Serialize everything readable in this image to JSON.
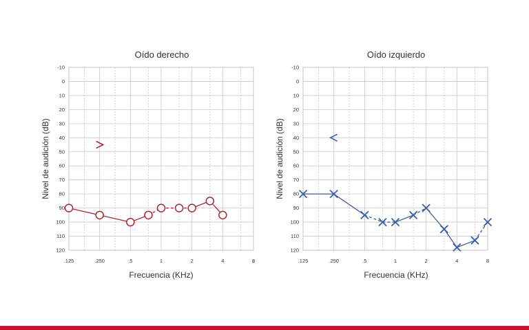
{
  "colors": {
    "right_ear": "#b22234",
    "left_ear": "#3b5ca8",
    "grid": "#c8c8c8",
    "accent_bar": "#c8102e"
  },
  "x_tick_labels": [
    ".125",
    ".250",
    ".5",
    "1",
    "2",
    "4",
    "8"
  ],
  "y_tick_labels": [
    "-10",
    "0",
    "10",
    "20",
    "30",
    "40",
    "50",
    "60",
    "70",
    "80",
    "90",
    "100",
    "110",
    "120"
  ],
  "chart_data": [
    {
      "type": "line",
      "title": "Oído derecho",
      "xlabel": "Frecuencia (KHz)",
      "ylabel": "Nivel de audición (dB)",
      "x_scale": "log2",
      "xlim_khz": [
        0.125,
        8
      ],
      "ylim_db": [
        -10,
        120
      ],
      "y_inverted": true,
      "grid": true,
      "symbol": "circle",
      "air_conduction": [
        {
          "x": 0.125,
          "y": 90
        },
        {
          "x": 0.25,
          "y": 95
        },
        {
          "x": 0.5,
          "y": 100
        },
        {
          "x": 0.75,
          "y": 95
        },
        {
          "x": 1,
          "y": 90
        },
        {
          "x": 1.5,
          "y": 90
        },
        {
          "x": 2,
          "y": 90
        },
        {
          "x": 3,
          "y": 85
        },
        {
          "x": 4,
          "y": 95
        }
      ],
      "dashed_segments": [
        [
          3,
          4
        ],
        [
          4,
          5
        ],
        [
          5,
          6
        ]
      ],
      "bone_conduction": [
        {
          "x": 0.25,
          "y": 45,
          "symbol": ">"
        }
      ]
    },
    {
      "type": "line",
      "title": "Oído izquierdo",
      "xlabel": "Frecuencia (KHz)",
      "ylabel": "Nivel de audición (dB)",
      "x_scale": "log2",
      "xlim_khz": [
        0.125,
        8
      ],
      "ylim_db": [
        -10,
        120
      ],
      "y_inverted": true,
      "grid": true,
      "symbol": "x",
      "air_conduction": [
        {
          "x": 0.125,
          "y": 80
        },
        {
          "x": 0.25,
          "y": 80
        },
        {
          "x": 0.5,
          "y": 95
        },
        {
          "x": 0.75,
          "y": 100
        },
        {
          "x": 1,
          "y": 100
        },
        {
          "x": 1.5,
          "y": 95
        },
        {
          "x": 2,
          "y": 90
        },
        {
          "x": 3,
          "y": 105
        },
        {
          "x": 4,
          "y": 118
        },
        {
          "x": 6,
          "y": 113
        },
        {
          "x": 8,
          "y": 100
        }
      ],
      "dashed_segments": [
        [
          2,
          3
        ],
        [
          3,
          4
        ],
        [
          5,
          6
        ],
        [
          9,
          10
        ]
      ],
      "bone_conduction": [
        {
          "x": 0.25,
          "y": 40,
          "symbol": "<"
        }
      ]
    }
  ]
}
